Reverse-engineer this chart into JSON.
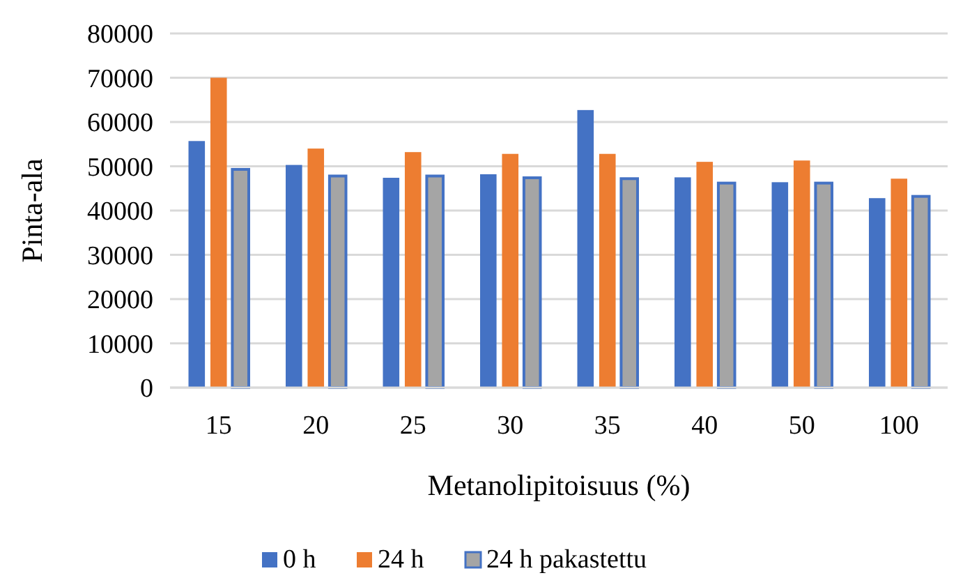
{
  "chart_data": {
    "type": "bar",
    "xlabel": "Metanolipitoisuus (%)",
    "ylabel": "Pinta-ala",
    "categories": [
      "15",
      "20",
      "25",
      "30",
      "35",
      "40",
      "50",
      "100"
    ],
    "series": [
      {
        "name": "0 h",
        "color": "#4472c4",
        "values": [
          55700,
          50300,
          47400,
          48200,
          62700,
          47500,
          46400,
          42800
        ]
      },
      {
        "name": "24 h",
        "color": "#ed7d31",
        "values": [
          70000,
          54000,
          53200,
          52800,
          52800,
          51000,
          51300,
          47200
        ]
      },
      {
        "name": "24 h pakastettu",
        "color": "#a5a5a5",
        "values": [
          49300,
          47800,
          47800,
          47400,
          47200,
          46200,
          46200,
          43200
        ]
      }
    ],
    "ylim": [
      0,
      80000
    ],
    "yticks": [
      0,
      10000,
      20000,
      30000,
      40000,
      50000,
      60000,
      70000,
      80000
    ],
    "grid": "y",
    "legend": "bottom"
  }
}
